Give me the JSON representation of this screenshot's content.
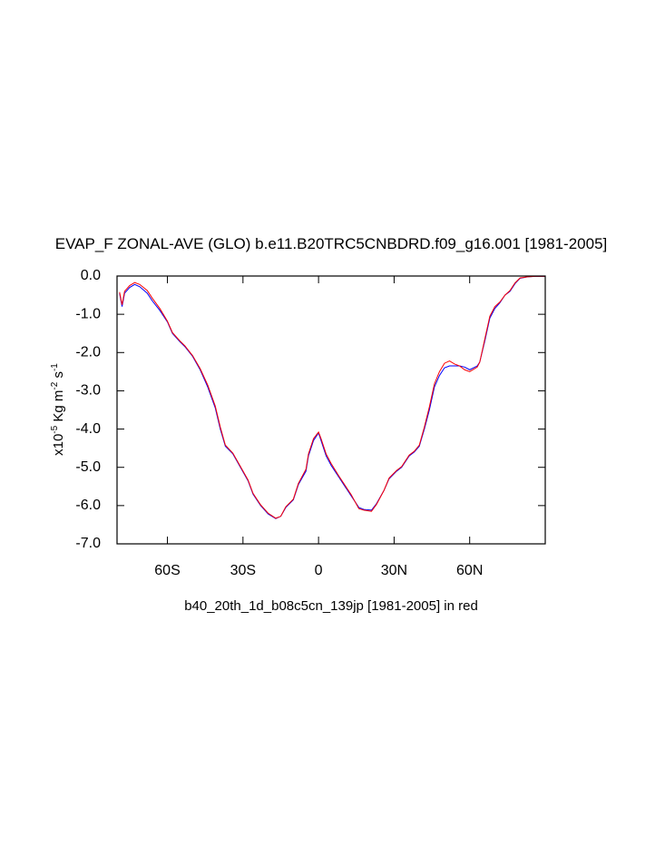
{
  "chart_data": {
    "type": "line",
    "title": "EVAP_F ZONAL-AVE (GLO) b.e11.B20TRC5CNBDRD.f09_g16.001 [1981-2005]",
    "x_label": "b40_20th_1d_b08c5cn_139jp [1981-2005] in red",
    "y_label": [
      "x10",
      "-5",
      " Kg m",
      "-2",
      " s",
      "-1"
    ],
    "x": [
      -79,
      -78,
      -77,
      -75,
      -73,
      -71,
      -68,
      -66,
      -63,
      -60,
      -58,
      -55,
      -53,
      -50,
      -47,
      -44,
      -41,
      -39,
      -37,
      -34,
      -31,
      -28,
      -26,
      -23,
      -20,
      -17,
      -15,
      -13,
      -10,
      -8,
      -5,
      -4,
      -2,
      0,
      1,
      3,
      5,
      8,
      10,
      13,
      16,
      18,
      21,
      23,
      26,
      28,
      31,
      33,
      36,
      38,
      40,
      42,
      44,
      46,
      48,
      50,
      52,
      54,
      56,
      58,
      60,
      63,
      64,
      66,
      68,
      70,
      72,
      74,
      76,
      78,
      80,
      83,
      86,
      90
    ],
    "series": [
      {
        "color": "#0000ff",
        "values": [
          -0.45,
          -0.8,
          -0.45,
          -0.3,
          -0.22,
          -0.28,
          -0.45,
          -0.65,
          -0.9,
          -1.2,
          -1.5,
          -1.72,
          -1.85,
          -2.1,
          -2.45,
          -2.9,
          -3.45,
          -4.0,
          -4.45,
          -4.65,
          -5.0,
          -5.35,
          -5.7,
          -6.0,
          -6.22,
          -6.34,
          -6.28,
          -6.05,
          -5.85,
          -5.45,
          -5.1,
          -4.7,
          -4.3,
          -4.1,
          -4.3,
          -4.7,
          -4.95,
          -5.25,
          -5.45,
          -5.75,
          -6.05,
          -6.1,
          -6.12,
          -5.95,
          -5.6,
          -5.3,
          -5.1,
          -5.0,
          -4.7,
          -4.6,
          -4.45,
          -4.0,
          -3.5,
          -2.9,
          -2.6,
          -2.4,
          -2.35,
          -2.35,
          -2.35,
          -2.38,
          -2.45,
          -2.35,
          -2.25,
          -1.7,
          -1.1,
          -0.85,
          -0.7,
          -0.5,
          -0.4,
          -0.2,
          -0.06,
          -0.02,
          -0.01,
          -0.01
        ]
      },
      {
        "color": "#ff0000",
        "values": [
          -0.42,
          -0.75,
          -0.4,
          -0.25,
          -0.17,
          -0.22,
          -0.38,
          -0.58,
          -0.85,
          -1.18,
          -1.48,
          -1.7,
          -1.83,
          -2.08,
          -2.42,
          -2.85,
          -3.4,
          -3.95,
          -4.42,
          -4.63,
          -4.98,
          -5.33,
          -5.68,
          -5.98,
          -6.2,
          -6.33,
          -6.28,
          -6.03,
          -5.83,
          -5.42,
          -5.05,
          -4.65,
          -4.25,
          -4.08,
          -4.25,
          -4.65,
          -4.9,
          -5.22,
          -5.42,
          -5.72,
          -6.08,
          -6.12,
          -6.15,
          -5.97,
          -5.6,
          -5.28,
          -5.08,
          -4.98,
          -4.68,
          -4.58,
          -4.42,
          -3.95,
          -3.42,
          -2.82,
          -2.5,
          -2.28,
          -2.22,
          -2.3,
          -2.35,
          -2.45,
          -2.5,
          -2.38,
          -2.25,
          -1.65,
          -1.05,
          -0.8,
          -0.68,
          -0.5,
          -0.38,
          -0.18,
          -0.05,
          -0.02,
          -0.01,
          -0.01
        ]
      }
    ],
    "xlim": [
      -80,
      90
    ],
    "xticks": [
      {
        "value": -60,
        "label": "60S"
      },
      {
        "value": -30,
        "label": "30S"
      },
      0,
      {
        "value": 30,
        "label": "30N"
      },
      {
        "value": 60,
        "label": "60N"
      }
    ],
    "ylim": [
      -7,
      0
    ],
    "yticks": [
      {
        "value": 0,
        "label": "0.0"
      },
      {
        "value": -1,
        "label": "-1.0"
      },
      {
        "value": -2,
        "label": "-2.0"
      },
      {
        "value": -3,
        "label": "-3.0"
      },
      {
        "value": -4,
        "label": "-4.0"
      },
      {
        "value": -5,
        "label": "-5.0"
      },
      {
        "value": -6,
        "label": "-6.0"
      },
      {
        "value": -7,
        "label": "-7.0"
      }
    ],
    "grid": false
  }
}
